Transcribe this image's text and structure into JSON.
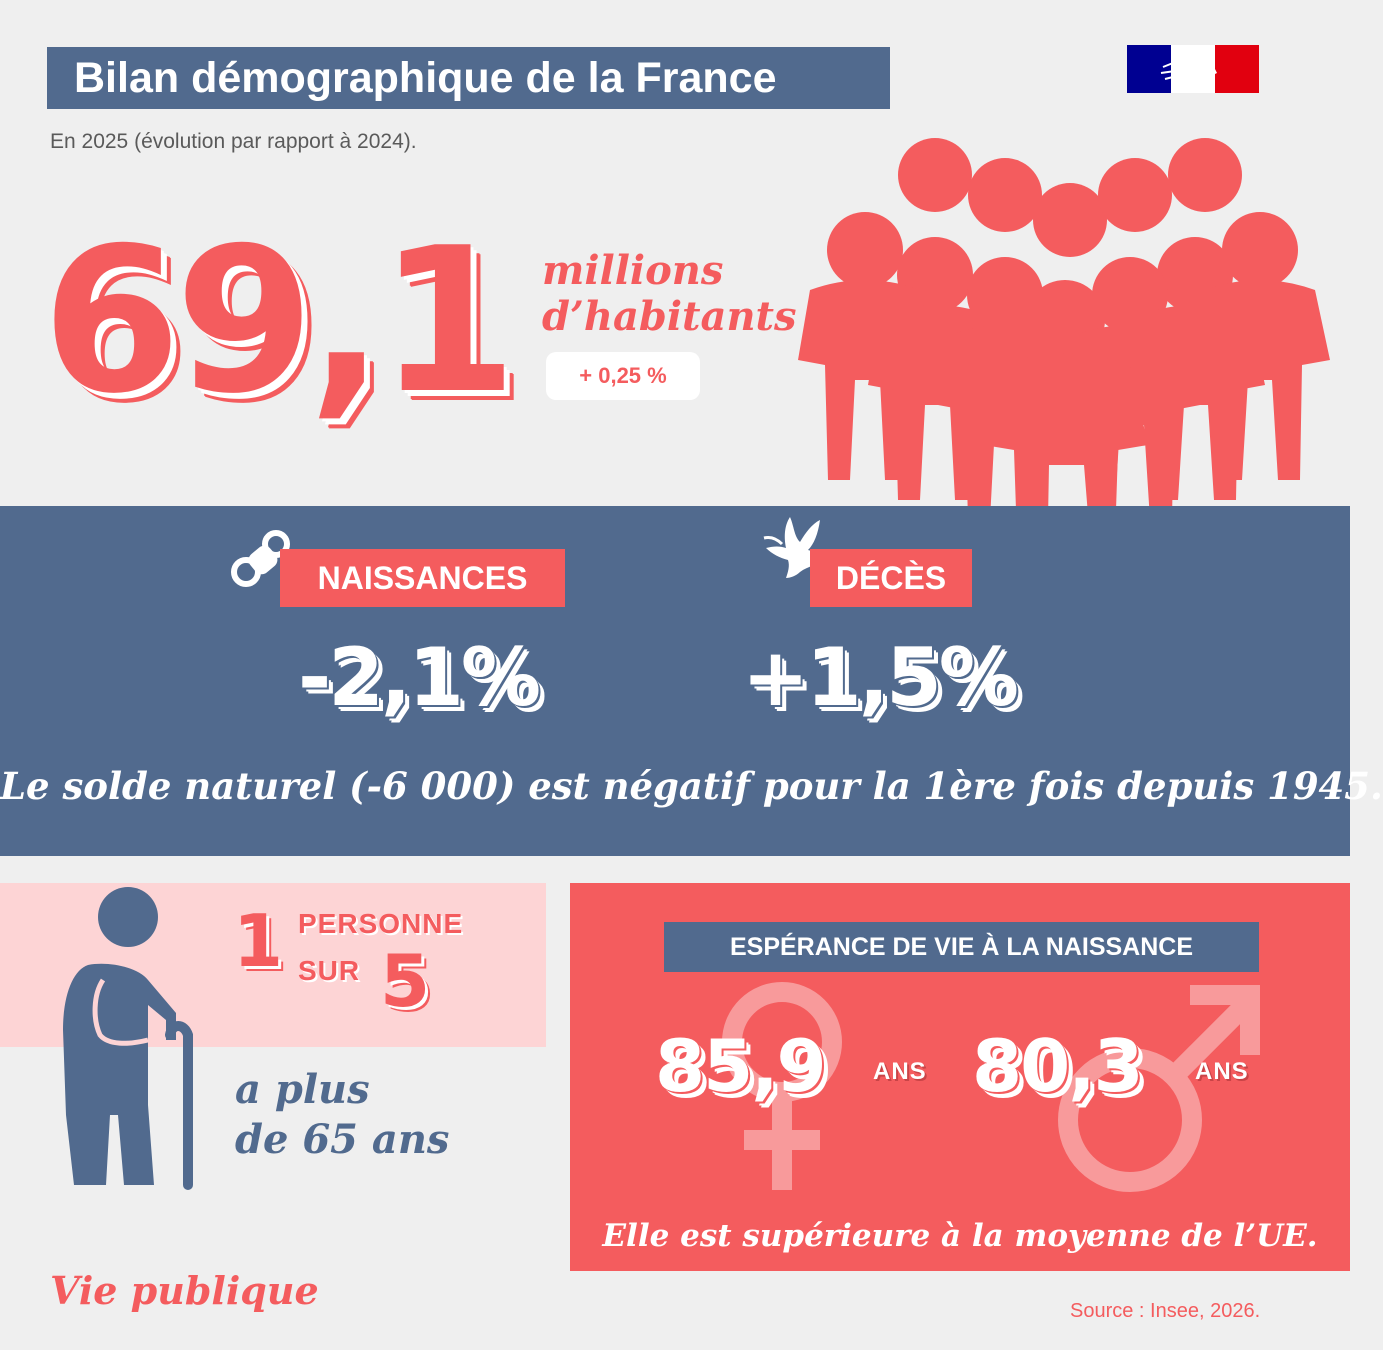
{
  "header": {
    "title": "Bilan démographique de la France",
    "subtitle": "En 2025 (évolution par rapport à 2024)."
  },
  "population": {
    "value": "69,1",
    "unit_line1": "millions",
    "unit_line2": "d’habitants",
    "change": "+ 0,25 %"
  },
  "births": {
    "label": "NAISSANCES",
    "value": "-2,1%",
    "icon": "pacifier-icon"
  },
  "deaths": {
    "label": "DÉCÈS",
    "value": "+1,5%",
    "icon": "dove-icon"
  },
  "natural_balance_note": "Le solde naturel (-6 000) est négatif pour la 1ère fois depuis 1945.",
  "elderly": {
    "numerator": "1",
    "word1": "PERSONNE",
    "word2": "SUR",
    "denominator": "5",
    "note_line1": "a plus",
    "note_line2": "de 65 ans"
  },
  "life_expectancy": {
    "title": "ESPÉRANCE DE VIE À LA NAISSANCE",
    "female_value": "85,9",
    "female_unit": "ANS",
    "male_value": "80,3",
    "male_unit": "ANS",
    "note": "Elle est supérieure à la moyenne de l’UE."
  },
  "footer": {
    "brand": "Vie publique",
    "source": "Source : Insee, 2026."
  },
  "colors": {
    "red": "#f45c5e",
    "blue": "#516a8e",
    "pink": "#fdd4d5",
    "background": "#efefef"
  }
}
